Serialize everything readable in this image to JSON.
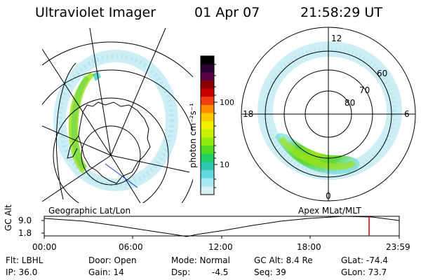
{
  "header": {
    "title": "Ultraviolet Imager",
    "date": "01 Apr 07",
    "time": "21:58:29 UT"
  },
  "colorbar": {
    "unit_label": "photon cm⁻²s⁻¹",
    "ticks": [
      "100",
      "10"
    ],
    "colors": [
      "#000000",
      "#2a0033",
      "#5a0044",
      "#8a0000",
      "#c80000",
      "#f04010",
      "#ff8c00",
      "#ffc800",
      "#f0f000",
      "#c8f000",
      "#90ec10",
      "#50dc20",
      "#20d060",
      "#30c8b0",
      "#60d8e0",
      "#a8e8f0",
      "#d8f0f4"
    ]
  },
  "left_map": {
    "caption": "Geographic Lat/Lon"
  },
  "right_map": {
    "caption": "Apex MLat/MLT",
    "mlt_labels": [
      "12",
      "18",
      "6",
      "0"
    ],
    "lat_labels": [
      "60",
      "70",
      "80"
    ]
  },
  "timeline": {
    "yaxis_label": "GC Alt",
    "y_ticks": [
      "9.0",
      "1.8"
    ],
    "x_ticks": [
      "00:00",
      "06:00",
      "12:00",
      "18:00",
      "23:59"
    ],
    "marker_color": "#d00000"
  },
  "info": {
    "flt": "Flt: LBHL",
    "ip": "IP: 36.0",
    "door": "Door: Open",
    "gain": "Gain: 14",
    "mode": "Mode: Normal",
    "dsp": "Dsp:",
    "dsp_val": "-4.5",
    "gc_alt": "GC Alt: 8.4 Re",
    "seq": "Seq: 39",
    "glat": "GLat: -74.4",
    "glon": "GLon: 73.7"
  }
}
